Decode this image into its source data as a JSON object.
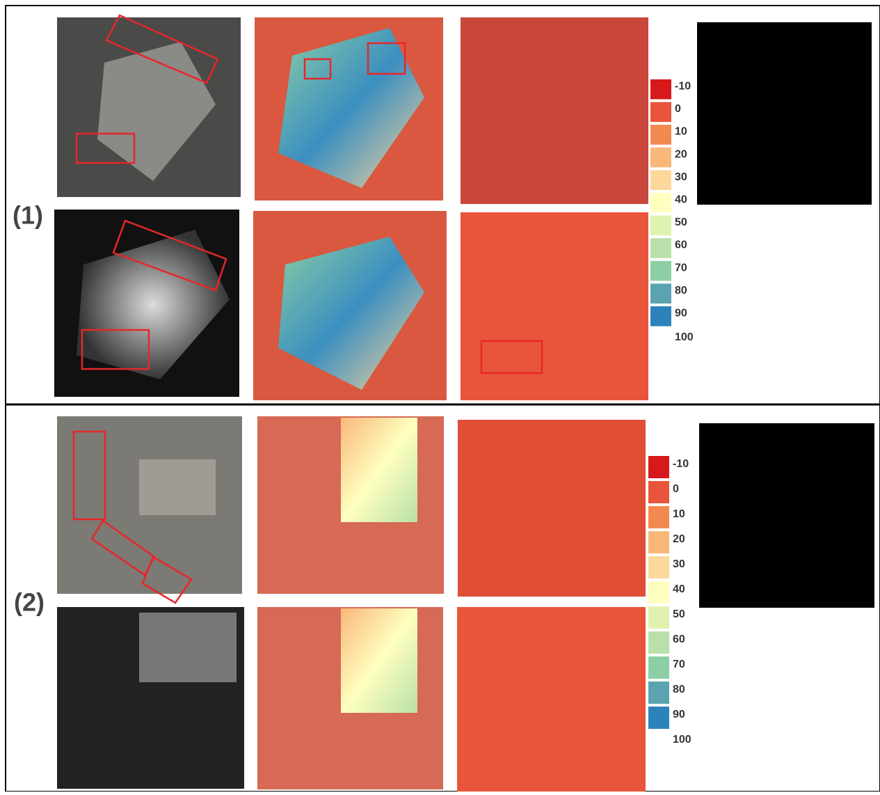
{
  "panels": [
    {
      "label": "(1)"
    },
    {
      "label": "(2)"
    }
  ],
  "legend": {
    "labels": [
      "-10",
      "0",
      "10",
      "20",
      "30",
      "40",
      "50",
      "60",
      "70",
      "80",
      "90",
      "100"
    ],
    "colors": [
      "#d7191c",
      "#e8553b",
      "#f28a50",
      "#f9b87a",
      "#fdd79c",
      "#ffffbf",
      "#e0f2b0",
      "#b8e0a8",
      "#8ccfa4",
      "#5ba3b0",
      "#2b83ba"
    ]
  }
}
